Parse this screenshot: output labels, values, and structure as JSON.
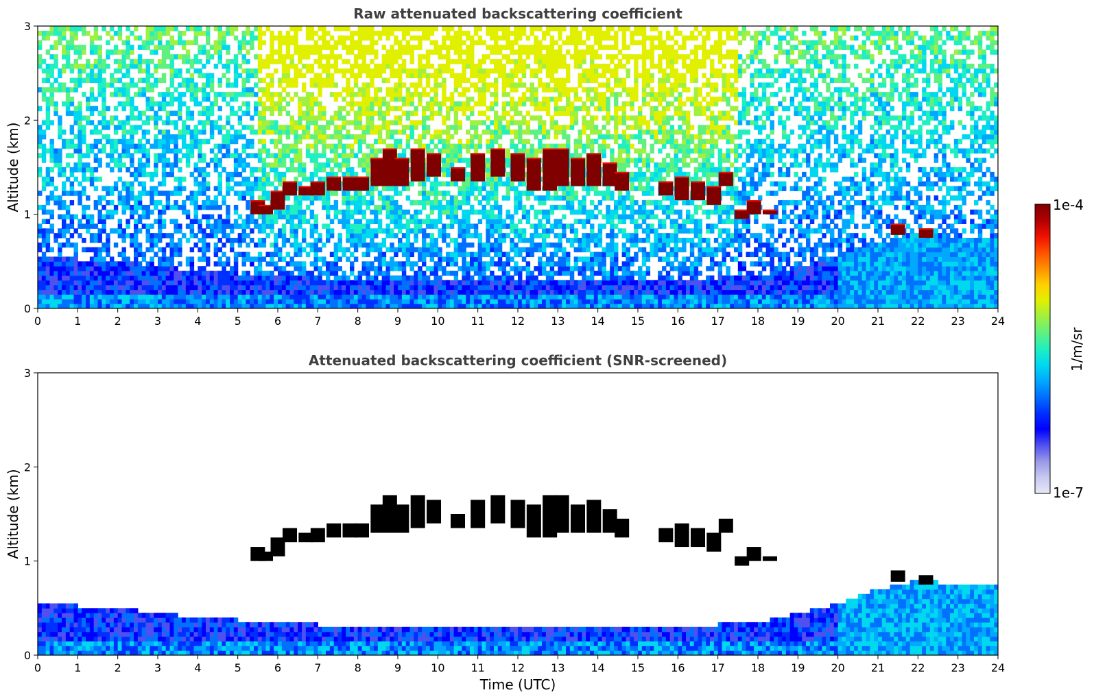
{
  "colorbar": {
    "max_label": "1e-4",
    "min_label": "1e-7",
    "unit_label": "1/m/sr",
    "colors": [
      "#e8e8f8",
      "#c8c8f0",
      "#9898e8",
      "#5050f0",
      "#0000ff",
      "#0030ff",
      "#0070ff",
      "#00a8ff",
      "#00d8f0",
      "#20f0c0",
      "#60f080",
      "#a0f040",
      "#e0f000",
      "#ffd000",
      "#ff9000",
      "#ff5000",
      "#f01000",
      "#b00000",
      "#800000"
    ]
  },
  "chart_data": [
    {
      "type": "heatmap",
      "title": "Raw attenuated backscattering coefficient",
      "xlabel": "",
      "ylabel": "Altitude (km)",
      "xlim": [
        0,
        24
      ],
      "ylim": [
        0,
        3
      ],
      "x_ticks": [
        "0",
        "1",
        "2",
        "3",
        "4",
        "5",
        "6",
        "7",
        "8",
        "9",
        "10",
        "11",
        "12",
        "13",
        "14",
        "15",
        "16",
        "17",
        "18",
        "19",
        "20",
        "21",
        "22",
        "23",
        "24"
      ],
      "y_ticks": [
        "0",
        "1",
        "2",
        "3"
      ],
      "color_scale": "log",
      "value_range": [
        1e-07,
        0.0001
      ],
      "value_unit": "1/m/sr",
      "cloud_layer": {
        "time": [
          5.5,
          5.7,
          6.0,
          6.3,
          6.7,
          7.0,
          7.4,
          7.8,
          8.1,
          8.5,
          8.8,
          9.1,
          9.5,
          9.9,
          10.5,
          11.0,
          11.5,
          12.0,
          12.4,
          12.8,
          13.1,
          13.5,
          13.9,
          14.3,
          14.6,
          15.7,
          16.1,
          16.5,
          16.9,
          17.2,
          17.6,
          17.9,
          18.3,
          21.5,
          22.2
        ],
        "base_km": [
          1.0,
          1.0,
          1.05,
          1.2,
          1.2,
          1.2,
          1.25,
          1.25,
          1.25,
          1.3,
          1.3,
          1.3,
          1.35,
          1.4,
          1.35,
          1.35,
          1.4,
          1.35,
          1.25,
          1.25,
          1.3,
          1.3,
          1.3,
          1.3,
          1.25,
          1.2,
          1.15,
          1.15,
          1.1,
          1.3,
          0.95,
          1.0,
          1.0,
          0.78,
          0.75
        ],
        "top_km": [
          1.15,
          1.1,
          1.25,
          1.35,
          1.3,
          1.35,
          1.4,
          1.4,
          1.4,
          1.6,
          1.7,
          1.6,
          1.7,
          1.65,
          1.5,
          1.65,
          1.7,
          1.65,
          1.6,
          1.7,
          1.7,
          1.6,
          1.65,
          1.55,
          1.45,
          1.35,
          1.4,
          1.35,
          1.3,
          1.45,
          1.05,
          1.15,
          1.05,
          0.9,
          0.85
        ]
      },
      "boundary_layer_top_km": {
        "time": [
          0,
          2,
          4,
          6,
          8,
          10,
          12,
          14,
          16,
          18,
          20,
          21,
          22,
          23,
          24
        ],
        "height": [
          0.55,
          0.5,
          0.4,
          0.35,
          0.3,
          0.3,
          0.3,
          0.3,
          0.3,
          0.35,
          0.55,
          0.7,
          0.8,
          0.75,
          0.75
        ]
      }
    },
    {
      "type": "heatmap",
      "title": "Attenuated backscattering coefficient (SNR-screened)",
      "xlabel": "Time (UTC)",
      "ylabel": "Altitude (km)",
      "xlim": [
        0,
        24
      ],
      "ylim": [
        0,
        3
      ],
      "x_ticks": [
        "0",
        "1",
        "2",
        "3",
        "4",
        "5",
        "6",
        "7",
        "8",
        "9",
        "10",
        "11",
        "12",
        "13",
        "14",
        "15",
        "16",
        "17",
        "18",
        "19",
        "20",
        "21",
        "22",
        "23",
        "24"
      ],
      "y_ticks": [
        "0",
        "1",
        "2",
        "3"
      ],
      "color_scale": "log",
      "value_range": [
        1e-07,
        0.0001
      ],
      "value_unit": "1/m/sr"
    }
  ]
}
